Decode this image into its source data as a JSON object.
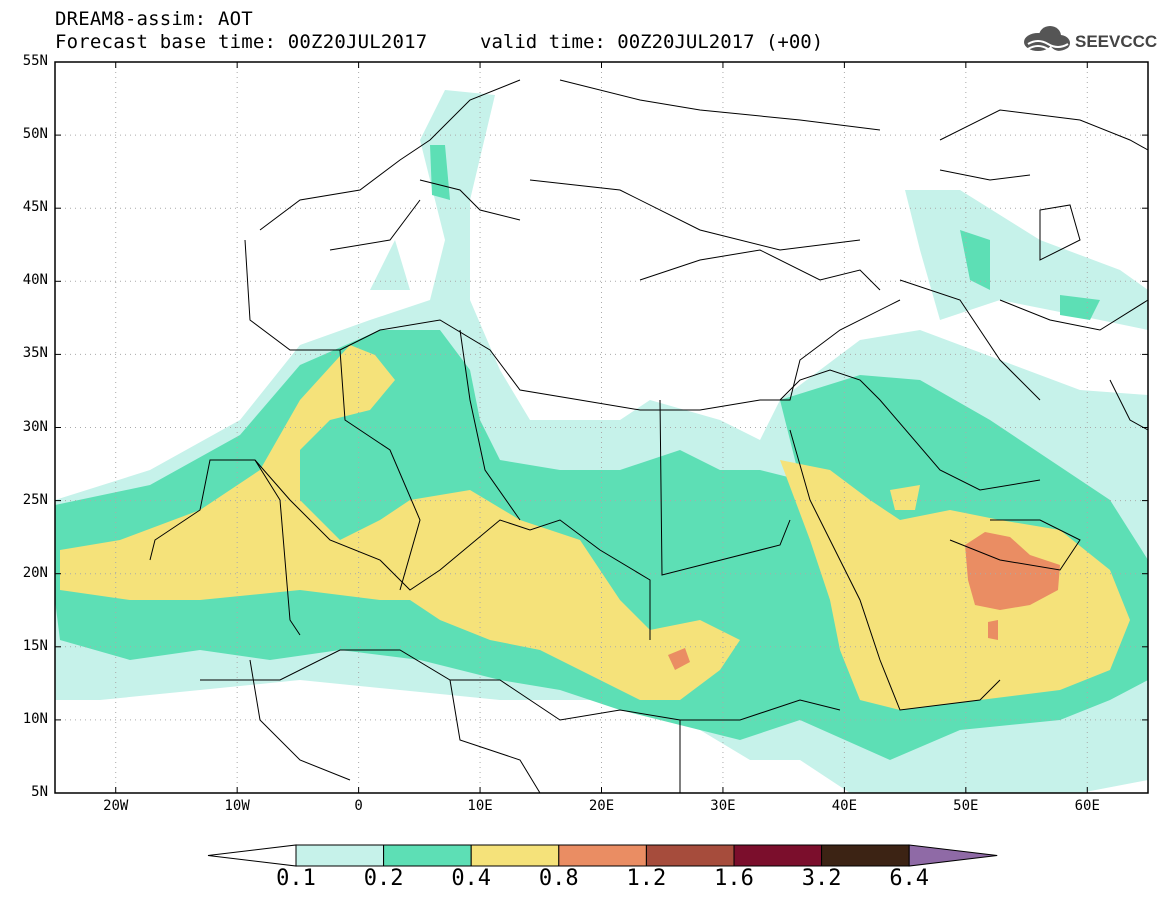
{
  "header": {
    "model_title": "DREAM8-assim: AOT",
    "base_time": "Forecast base time: 00Z20JUL2017",
    "valid_time": "valid time: 00Z20JUL2017 (+00)",
    "logo_text": "SEEVCCC"
  },
  "map": {
    "lon_range": [
      -25,
      65
    ],
    "lat_range": [
      5,
      55
    ],
    "lat_ticks": [
      "55N",
      "50N",
      "45N",
      "40N",
      "35N",
      "30N",
      "25N",
      "20N",
      "15N",
      "10N",
      "5N"
    ],
    "lon_ticks": [
      "20W",
      "10W",
      "0",
      "10E",
      "20E",
      "30E",
      "40E",
      "50E",
      "60E"
    ],
    "grid": "dotted"
  },
  "legend": {
    "labels": [
      "0.1",
      "0.2",
      "0.4",
      "0.8",
      "1.2",
      "1.6",
      "3.2",
      "6.4"
    ],
    "colors": [
      "#c6f2ea",
      "#5ddfb5",
      "#f5e27a",
      "#ea8d63",
      "#a64c3c",
      "#7b0e2c",
      "#3c2314",
      "#8f6aa6"
    ]
  }
}
